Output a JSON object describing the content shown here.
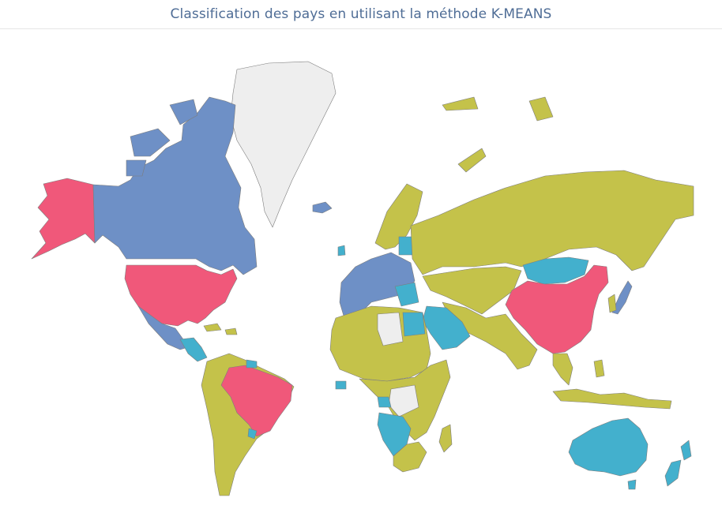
{
  "title": "Classification des pays en utilisant la méthode K-MEANS",
  "colors": {
    "cluster_pink": "#f0587a",
    "cluster_blue": "#6e90c6",
    "cluster_teal": "#43b0cd",
    "cluster_olive": "#c4c24a",
    "no_data": "#eeeeee"
  },
  "map": {
    "projection": "mercator",
    "regions": [
      {
        "name": "Alaska",
        "cluster": "cluster_pink"
      },
      {
        "name": "Canada",
        "cluster": "cluster_blue"
      },
      {
        "name": "United States",
        "cluster": "cluster_pink"
      },
      {
        "name": "Mexico",
        "cluster": "cluster_blue"
      },
      {
        "name": "Central America",
        "cluster": "cluster_teal"
      },
      {
        "name": "Greenland",
        "cluster": "no_data"
      },
      {
        "name": "Brazil",
        "cluster": "cluster_pink"
      },
      {
        "name": "South America (other)",
        "cluster": "cluster_olive"
      },
      {
        "name": "Western Europe",
        "cluster": "cluster_blue"
      },
      {
        "name": "Ireland",
        "cluster": "cluster_teal"
      },
      {
        "name": "Russia",
        "cluster": "cluster_olive"
      },
      {
        "name": "Mongolia",
        "cluster": "cluster_teal"
      },
      {
        "name": "China",
        "cluster": "cluster_pink"
      },
      {
        "name": "Japan",
        "cluster": "cluster_blue"
      },
      {
        "name": "Saudi Arabia",
        "cluster": "cluster_teal"
      },
      {
        "name": "Egypt",
        "cluster": "cluster_teal"
      },
      {
        "name": "Africa (most)",
        "cluster": "cluster_olive"
      },
      {
        "name": "Angola",
        "cluster": "cluster_teal"
      },
      {
        "name": "Australia",
        "cluster": "cluster_teal"
      },
      {
        "name": "New Zealand",
        "cluster": "cluster_teal"
      },
      {
        "name": "Indonesia",
        "cluster": "cluster_olive"
      }
    ]
  }
}
